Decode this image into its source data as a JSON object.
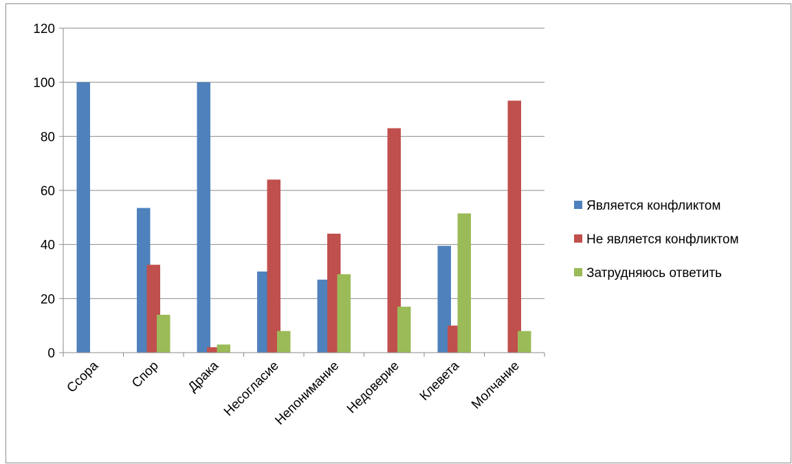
{
  "chart_data": {
    "type": "bar",
    "categories": [
      "Ссора",
      "Спор",
      "Драка",
      "Несогласие",
      "Непонимание",
      "Недоверие",
      "Клевета",
      "Молчание"
    ],
    "series": [
      {
        "name": "Является конфликтом",
        "color": "#4f81bd",
        "values": [
          100,
          53.5,
          100,
          30,
          27,
          0,
          39.5,
          0
        ]
      },
      {
        "name": "Не является конфликтом",
        "color": "#c0504d",
        "values": [
          0,
          32.5,
          2,
          64,
          44,
          83,
          10,
          93.2
        ]
      },
      {
        "name": "Затрудняюсь ответить",
        "color": "#9bbb59",
        "values": [
          0,
          14,
          3,
          8,
          29,
          17,
          51.5,
          8
        ]
      }
    ],
    "y_ticks": [
      "0",
      "20",
      "40",
      "60",
      "80",
      "100",
      "120"
    ],
    "ylim": [
      0,
      120
    ],
    "grid": true,
    "legend_position": "right"
  }
}
